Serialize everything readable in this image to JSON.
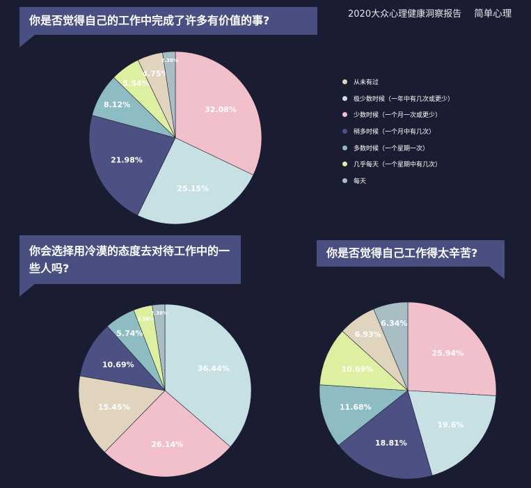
{
  "brand": {
    "report": "2020大众心理健康洞察报告",
    "logo": "简单心理"
  },
  "legend": [
    {
      "label": "从未有过",
      "color": "#e0d4bf"
    },
    {
      "label": "极少数时候（一年中有几次或更少）",
      "color": "#c6e0e4"
    },
    {
      "label": "少数时候（一个月一次或更少）",
      "color": "#f1c0ca"
    },
    {
      "label": "稍多时候（一个月中有几次）",
      "color": "#4c5083"
    },
    {
      "label": "多数时候（一个星期一次）",
      "color": "#8dbcc2"
    },
    {
      "label": "几乎每天（一个星期中有几次）",
      "color": "#ddefa0"
    },
    {
      "label": "每天",
      "color": "#a8bec4"
    }
  ],
  "chart_data": [
    {
      "type": "pie",
      "title": "你是否觉得自己的工作中完成了许多有价值的事?",
      "slices": [
        {
          "label": "少数时候（一个月一次或更少）",
          "value": 32.08,
          "text": "32.08%",
          "color": "#f1c0ca"
        },
        {
          "label": "极少数时候（一年中有几次或更少）",
          "value": 25.15,
          "text": "25.15%",
          "color": "#c6e0e4"
        },
        {
          "label": "稍多时候（一个月中有几次）",
          "value": 21.98,
          "text": "21.98%",
          "color": "#4c5083"
        },
        {
          "label": "多数时候（一个星期一次）",
          "value": 8.12,
          "text": "8.12%",
          "color": "#8dbcc2"
        },
        {
          "label": "几乎每天（一个星期中有几次）",
          "value": 5.54,
          "text": "5.54%",
          "color": "#ddefa0"
        },
        {
          "label": "从未有过",
          "value": 4.75,
          "text": "4.75%",
          "color": "#e0d4bf"
        },
        {
          "label": "每天",
          "value": 2.38,
          "text": "2.38%",
          "color": "#a8bec4"
        }
      ]
    },
    {
      "type": "pie",
      "title": "你会选择用冷漠的态度去对待工作中的一些人吗?",
      "slices": [
        {
          "label": "极少数时候（一年中有几次或更少）",
          "value": 36.44,
          "text": "36.44%",
          "color": "#c6e0e4"
        },
        {
          "label": "少数时候（一个月一次或更少）",
          "value": 26.14,
          "text": "26.14%",
          "color": "#f1c0ca"
        },
        {
          "label": "从未有过",
          "value": 15.45,
          "text": "15.45%",
          "color": "#e0d4bf"
        },
        {
          "label": "稍多时候（一个月中有几次）",
          "value": 10.69,
          "text": "10.69%",
          "color": "#4c5083"
        },
        {
          "label": "多数时候（一个星期一次）",
          "value": 5.74,
          "text": "5.74%",
          "color": "#8dbcc2"
        },
        {
          "label": "几乎每天（一个星期中有几次）",
          "value": 3.56,
          "text": "3.56%",
          "color": "#ddefa0"
        },
        {
          "label": "每天",
          "value": 2.38,
          "text": "2.38%",
          "color": "#a8bec4"
        }
      ]
    },
    {
      "type": "pie",
      "title": "你是否觉得自己工作得太辛苦?",
      "slices": [
        {
          "label": "少数时候（一个月一次或更少）",
          "value": 25.94,
          "text": "25.94%",
          "color": "#f1c0ca"
        },
        {
          "label": "极少数时候（一年中有几次或更少）",
          "value": 19.6,
          "text": "19.6%",
          "color": "#c6e0e4"
        },
        {
          "label": "稍多时候（一个月中有几次）",
          "value": 18.81,
          "text": "18.81%",
          "color": "#4c5083"
        },
        {
          "label": "多数时候（一个星期一次）",
          "value": 11.68,
          "text": "11.68%",
          "color": "#8dbcc2"
        },
        {
          "label": "几乎每天（一个星期中有几次）",
          "value": 10.69,
          "text": "10.69%",
          "color": "#ddefa0"
        },
        {
          "label": "从未有过",
          "value": 6.93,
          "text": "6.93%",
          "color": "#e0d4bf"
        },
        {
          "label": "每天",
          "value": 6.34,
          "text": "6.34%",
          "color": "#a8bec4"
        }
      ]
    }
  ]
}
